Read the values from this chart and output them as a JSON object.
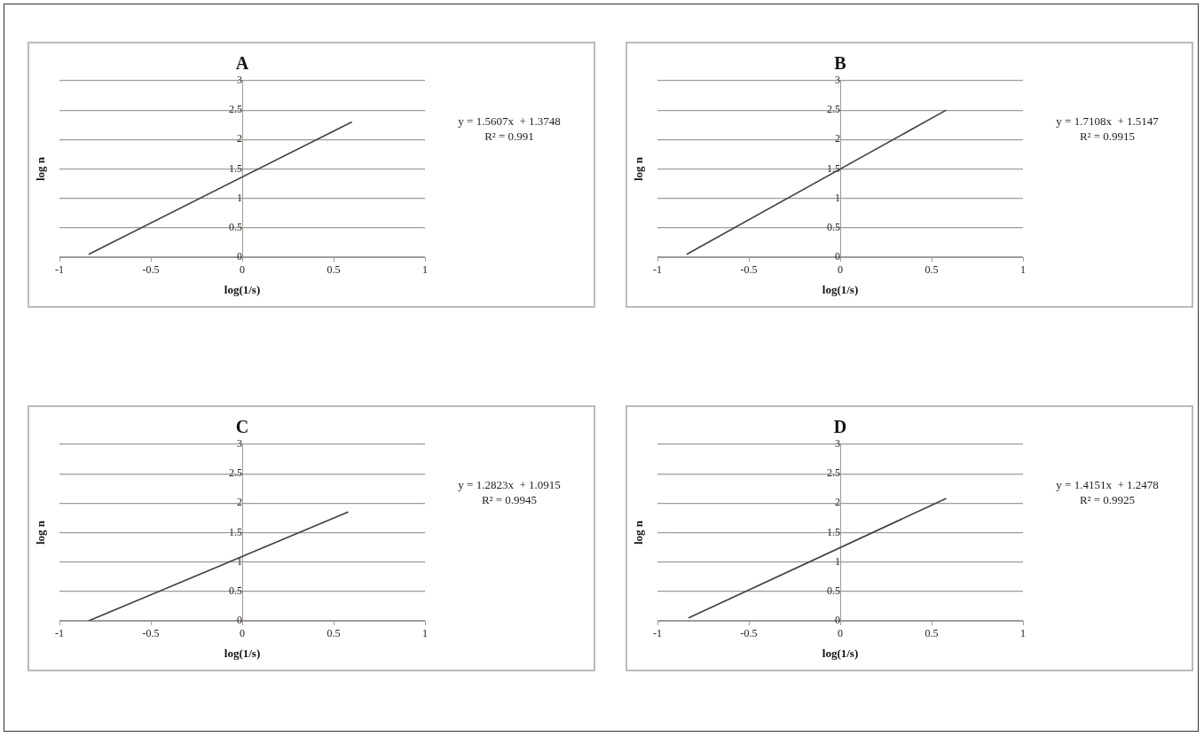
{
  "chart_data": [
    {
      "type": "line",
      "title": "A",
      "xlabel": "log(1/s)",
      "ylabel": "log n",
      "xlim": [
        -1,
        1
      ],
      "xticks": [
        -1,
        -0.5,
        0,
        0.5,
        1
      ],
      "ylim": [
        0,
        3
      ],
      "yticks": [
        0,
        0.5,
        1,
        1.5,
        2,
        2.5,
        3
      ],
      "grid": "y",
      "marker": "none",
      "legend": false,
      "series": [
        {
          "color": "#404040",
          "x": [
            -0.84,
            0.6
          ],
          "values": [
            0.05,
            2.3
          ]
        }
      ],
      "annotations": [
        "y = 1.5607x  + 1.3748",
        "R² = 0.991"
      ]
    },
    {
      "type": "line",
      "title": "B",
      "xlabel": "log(1/s)",
      "ylabel": "log n",
      "xlim": [
        -1,
        1
      ],
      "xticks": [
        -1,
        -0.5,
        0,
        0.5,
        1
      ],
      "ylim": [
        0,
        3
      ],
      "yticks": [
        0,
        0.5,
        1,
        1.5,
        2,
        2.5,
        3
      ],
      "grid": "y",
      "marker": "none",
      "legend": false,
      "series": [
        {
          "color": "#404040",
          "x": [
            -0.84,
            0.58
          ],
          "values": [
            0.05,
            2.5
          ]
        }
      ],
      "annotations": [
        "y = 1.7108x  + 1.5147",
        "R² = 0.9915"
      ]
    },
    {
      "type": "line",
      "title": "C",
      "xlabel": "log(1/s)",
      "ylabel": "log n",
      "xlim": [
        -1,
        1
      ],
      "xticks": [
        -1,
        -0.5,
        0,
        0.5,
        1
      ],
      "ylim": [
        0,
        3
      ],
      "yticks": [
        0,
        0.5,
        1,
        1.5,
        2,
        2.5,
        3
      ],
      "grid": "y",
      "marker": "none",
      "legend": false,
      "series": [
        {
          "color": "#404040",
          "x": [
            -0.84,
            0.58
          ],
          "values": [
            0,
            1.85
          ]
        }
      ],
      "annotations": [
        "y = 1.2823x  + 1.0915",
        "R² = 0.9945"
      ]
    },
    {
      "type": "line",
      "title": "D",
      "xlabel": "log(1/s)",
      "ylabel": "log n",
      "xlim": [
        -1,
        1
      ],
      "xticks": [
        -1,
        -0.5,
        0,
        0.5,
        1
      ],
      "ylim": [
        0,
        3
      ],
      "yticks": [
        0,
        0.5,
        1,
        1.5,
        2,
        2.5,
        3
      ],
      "grid": "y",
      "marker": "none",
      "legend": false,
      "series": [
        {
          "color": "#404040",
          "x": [
            -0.83,
            0.58
          ],
          "values": [
            0.05,
            2.08
          ]
        }
      ],
      "annotations": [
        "y = 1.4151x  + 1.2478",
        "R² = 0.9925"
      ]
    }
  ]
}
